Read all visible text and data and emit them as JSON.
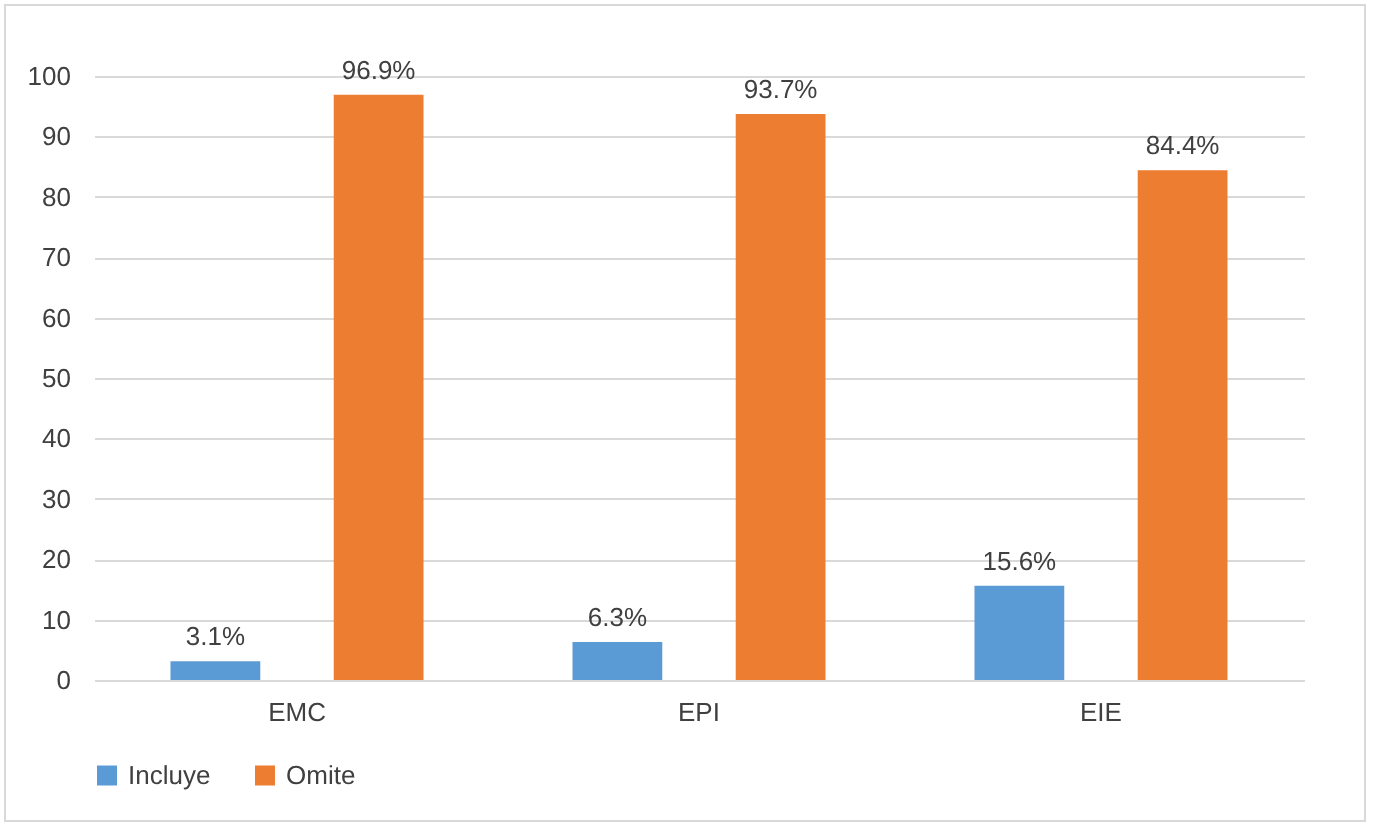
{
  "chart_data": {
    "type": "bar",
    "categories": [
      "EMC",
      "EPI",
      "EIE"
    ],
    "series": [
      {
        "name": "Incluye",
        "color": "#5b9bd5",
        "values": [
          3.1,
          6.3,
          15.6
        ],
        "value_labels": [
          "3.1%",
          "6.3%",
          "15.6%"
        ]
      },
      {
        "name": "Omite",
        "color": "#ed7d31",
        "values": [
          96.9,
          93.7,
          84.4
        ],
        "value_labels": [
          "96.9%",
          "93.7%",
          "84.4%"
        ]
      }
    ],
    "ylim": [
      0,
      100
    ],
    "yticks": [
      0,
      10,
      20,
      30,
      40,
      50,
      60,
      70,
      80,
      90,
      100
    ],
    "grid": "y",
    "legend": "bottom"
  }
}
